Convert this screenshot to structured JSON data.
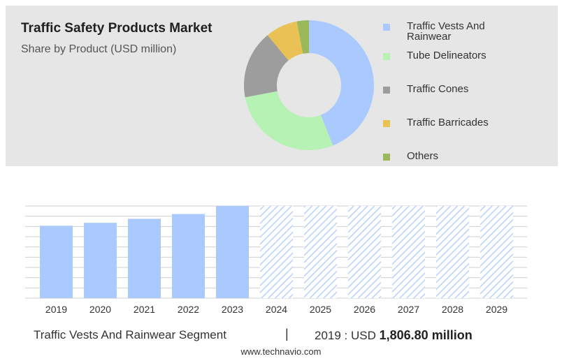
{
  "header": {
    "title": "Traffic Safety Products Market",
    "subtitle": "Share by Product (USD million)"
  },
  "footer": {
    "segment": "Traffic Vests And Rainwear Segment",
    "separator": "|",
    "value_prefix": "2019 : USD",
    "value": "1,806.80 million",
    "source": "www.technavio.com"
  },
  "colors": {
    "bar_solid": "#a9c9ff",
    "bar_hatch": "#a9c9ff",
    "grid": "#cfcfcf"
  },
  "chart_data": [
    {
      "type": "pie",
      "title": "Traffic Safety Products Market",
      "subtitle": "Share by Product (USD million)",
      "legend_position": "right",
      "slices": [
        {
          "name": "Traffic Vests And Rainwear",
          "value": 44,
          "color": "#a9c9ff"
        },
        {
          "name": "Tube Delineators",
          "value": 28,
          "color": "#b6f2b3"
        },
        {
          "name": "Traffic Cones",
          "value": 17,
          "color": "#9d9d9d"
        },
        {
          "name": "Traffic Barricades",
          "value": 8,
          "color": "#e9c155"
        },
        {
          "name": "Others",
          "value": 3,
          "color": "#9bb85a"
        }
      ]
    },
    {
      "type": "bar",
      "categories": [
        "2019",
        "2020",
        "2021",
        "2022",
        "2023",
        "2024",
        "2025",
        "2026",
        "2027",
        "2028",
        "2029"
      ],
      "values": [
        1806.8,
        1880,
        1980,
        2100,
        2300,
        null,
        null,
        null,
        null,
        null,
        null
      ],
      "forecast_categories": [
        "2024",
        "2025",
        "2026",
        "2027",
        "2028",
        "2029"
      ],
      "ylim": [
        0,
        2300
      ],
      "grid": true
    }
  ]
}
